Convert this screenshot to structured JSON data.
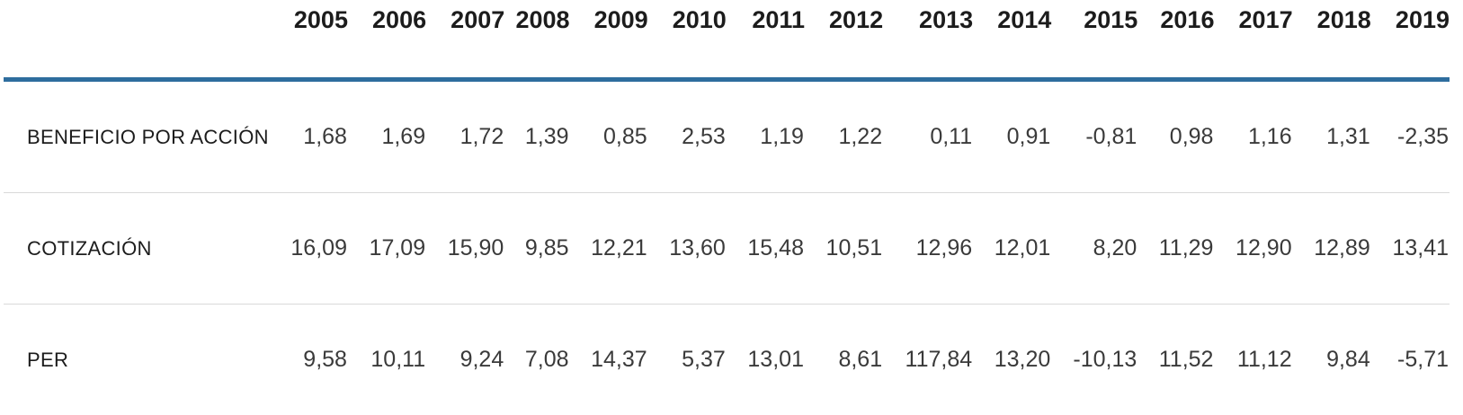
{
  "colors": {
    "header_rule": "#2e6d9e",
    "row_rule": "#d9d9d9",
    "header_text": "#1c1c1c",
    "value_text": "#3a3a3a"
  },
  "table": {
    "years": [
      "2005",
      "2006",
      "2007",
      "2008",
      "2009",
      "2010",
      "2011",
      "2012",
      "2013",
      "2014",
      "2015",
      "2016",
      "2017",
      "2018",
      "2019"
    ],
    "rows": [
      {
        "label": "BENEFICIO POR ACCIÓN",
        "values": [
          "1,68",
          "1,69",
          "1,72",
          "1,39",
          "0,85",
          "2,53",
          "1,19",
          "1,22",
          "0,11",
          "0,91",
          "-0,81",
          "0,98",
          "1,16",
          "1,31",
          "-2,35"
        ]
      },
      {
        "label": "COTIZACIÓN",
        "values": [
          "16,09",
          "17,09",
          "15,90",
          "9,85",
          "12,21",
          "13,60",
          "15,48",
          "10,51",
          "12,96",
          "12,01",
          "8,20",
          "11,29",
          "12,90",
          "12,89",
          "13,41"
        ]
      },
      {
        "label": "PER",
        "values": [
          "9,58",
          "10,11",
          "9,24",
          "7,08",
          "14,37",
          "5,37",
          "13,01",
          "8,61",
          "117,84",
          "13,20",
          "-10,13",
          "11,52",
          "11,12",
          "9,84",
          "-5,71"
        ]
      }
    ]
  },
  "chart_data": {
    "type": "table",
    "categories": [
      2005,
      2006,
      2007,
      2008,
      2009,
      2010,
      2011,
      2012,
      2013,
      2014,
      2015,
      2016,
      2017,
      2018,
      2019
    ],
    "series": [
      {
        "name": "BENEFICIO POR ACCIÓN",
        "values": [
          1.68,
          1.69,
          1.72,
          1.39,
          0.85,
          2.53,
          1.19,
          1.22,
          0.11,
          0.91,
          -0.81,
          0.98,
          1.16,
          1.31,
          -2.35
        ]
      },
      {
        "name": "COTIZACIÓN",
        "values": [
          16.09,
          17.09,
          15.9,
          9.85,
          12.21,
          13.6,
          15.48,
          10.51,
          12.96,
          12.01,
          8.2,
          11.29,
          12.9,
          12.89,
          13.41
        ]
      },
      {
        "name": "PER",
        "values": [
          9.58,
          10.11,
          9.24,
          7.08,
          14.37,
          5.37,
          13.01,
          8.61,
          117.84,
          13.2,
          -10.13,
          11.52,
          11.12,
          9.84,
          -5.71
        ]
      }
    ],
    "title": "",
    "xlabel": "",
    "ylabel": "",
    "notes": "Decimal separator is a comma (Spanish locale); header rule color #2e6d9e"
  }
}
